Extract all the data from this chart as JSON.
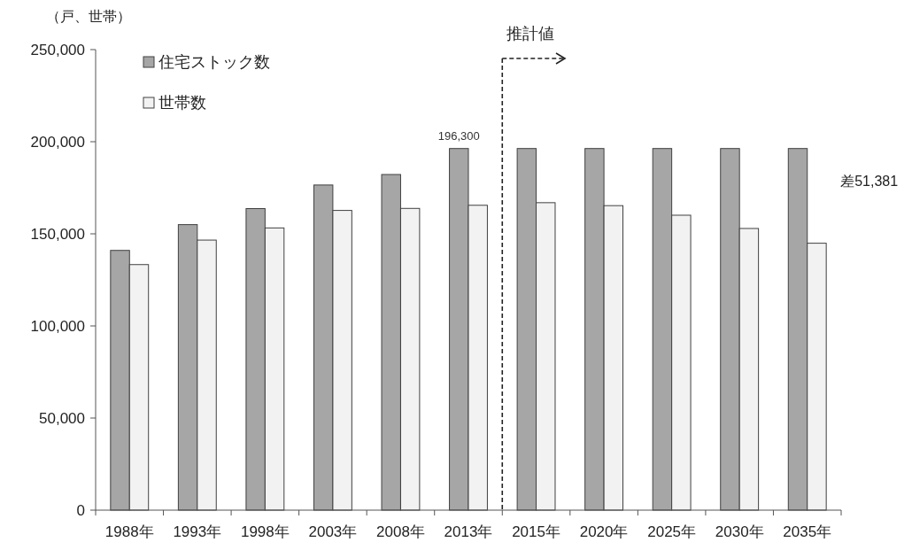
{
  "chart_data": {
    "type": "bar",
    "ylabel": "（戸、世帯）",
    "categories": [
      "1988年",
      "1993年",
      "1998年",
      "2003年",
      "2008年",
      "2013年",
      "2015年",
      "2020年",
      "2025年",
      "2030年",
      "2035年"
    ],
    "series": [
      {
        "name": "住宅ストック数",
        "color": "#a6a6a6",
        "values": [
          141000,
          155000,
          163700,
          176500,
          182200,
          196300,
          196300,
          196300,
          196300,
          196300,
          196300
        ],
        "value_labels": [
          null,
          null,
          null,
          null,
          null,
          "196,300",
          null,
          null,
          null,
          null,
          null
        ]
      },
      {
        "name": "世帯数",
        "color": "#f2f2f2",
        "values": [
          133300,
          146600,
          153200,
          162700,
          163800,
          165500,
          166900,
          165300,
          160100,
          152900,
          144900
        ]
      }
    ],
    "ylim": [
      0,
      250000
    ],
    "yticks": [
      {
        "value": 0,
        "label": "0"
      },
      {
        "value": 50000,
        "label": "50,000"
      },
      {
        "value": 100000,
        "label": "100,000"
      },
      {
        "value": 150000,
        "label": "150,000"
      },
      {
        "value": 200000,
        "label": "200,000"
      },
      {
        "value": 250000,
        "label": "250,000"
      }
    ],
    "annotations": [
      "推計値",
      "差51,381"
    ],
    "legend": "top left",
    "grid": false
  }
}
